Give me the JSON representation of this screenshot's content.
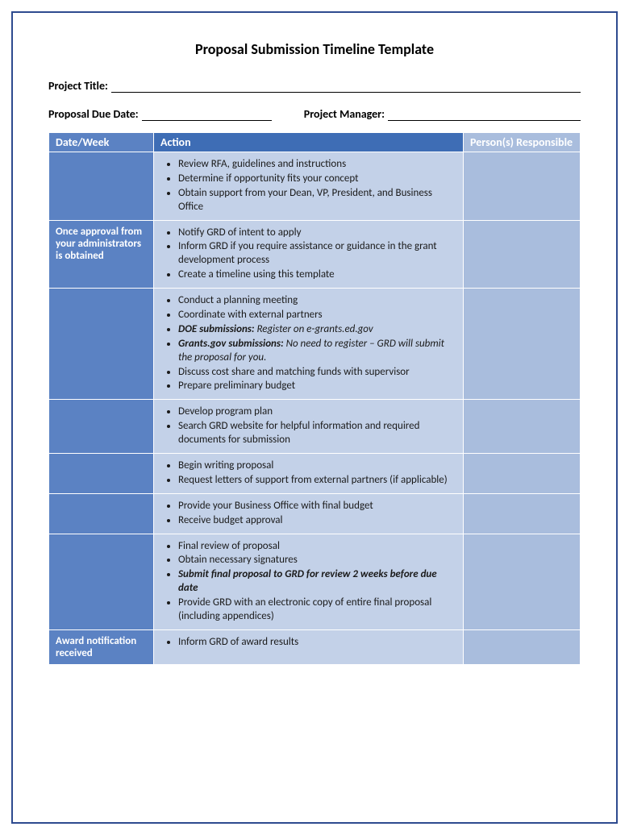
{
  "title": "Proposal Submission Timeline Template",
  "fields": {
    "project_title_label": "Project Title:",
    "proposal_due_date_label": "Proposal Due Date:",
    "project_manager_label": "Project Manager:"
  },
  "table": {
    "headers": {
      "date": "Date/Week",
      "action": "Action",
      "person": "Person(s) Responsible"
    },
    "rows": [
      {
        "date": "",
        "actions": [
          {
            "text": "Review RFA, guidelines and instructions"
          },
          {
            "text": "Determine if opportunity fits your concept"
          },
          {
            "text": "Obtain support from your Dean, VP, President, and Business Office"
          }
        ]
      },
      {
        "date": "Once approval from your administrators is obtained",
        "actions": [
          {
            "text": "Notify GRD of intent to apply"
          },
          {
            "text": "Inform GRD if you require assistance or guidance in the grant development process"
          },
          {
            "text": "Create a timeline using this template"
          }
        ]
      },
      {
        "date": "",
        "actions": [
          {
            "text": "Conduct a planning meeting"
          },
          {
            "text": "Coordinate with external partners"
          },
          {
            "prefix_bi": "DOE submissions:",
            "suffix_i": "  Register on e-grants.ed.gov"
          },
          {
            "prefix_bi": "Grants.gov submissions:",
            "suffix_i": " No need to register – GRD will submit the proposal for you."
          },
          {
            "text": "Discuss cost share and matching funds with supervisor"
          },
          {
            "text": "Prepare preliminary budget"
          }
        ]
      },
      {
        "date": "",
        "actions": [
          {
            "text": "Develop program plan"
          },
          {
            "text": "Search GRD website for helpful information and required documents for submission"
          }
        ]
      },
      {
        "date": "",
        "actions": [
          {
            "text": "Begin writing proposal"
          },
          {
            "text": "Request letters of support from external partners (if applicable)"
          }
        ]
      },
      {
        "date": "",
        "actions": [
          {
            "text": "Provide your Business Office with final budget"
          },
          {
            "text": "Receive budget approval"
          }
        ]
      },
      {
        "date": "",
        "actions": [
          {
            "text": "Final review of proposal"
          },
          {
            "text": "Obtain necessary signatures"
          },
          {
            "prefix_bi": "Submit final proposal to GRD for review 2 weeks before due date"
          },
          {
            "text": "Provide GRD with an electronic copy of entire final proposal (including appendices)"
          }
        ]
      },
      {
        "date": "Award notification received",
        "actions": [
          {
            "text": "Inform GRD of award results"
          }
        ]
      }
    ]
  },
  "colors": {
    "border": "#2e4b8f",
    "header_bg": "#3e6db5",
    "date_bg": "#5b82c3",
    "action_bg": "#c3d1e8",
    "person_bg": "#a9bddd",
    "header_text": "#ffffff"
  }
}
